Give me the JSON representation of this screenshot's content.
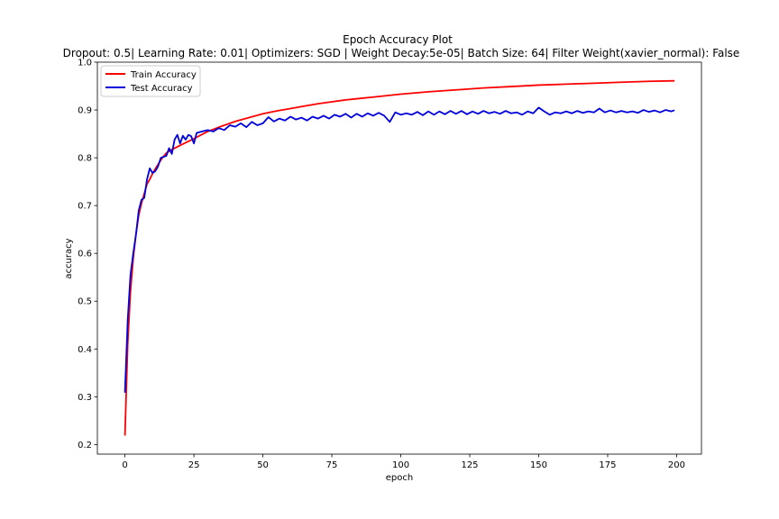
{
  "chart_data": {
    "type": "line",
    "title": "Epoch Accuracy Plot",
    "subtitle": "Dropout: 0.5| Learning Rate: 0.01| Optimizers: SGD | Weight Decay:5e-05| Batch Size: 64| Filter Weight(xavier_normal): False",
    "xlabel": "epoch",
    "ylabel": "accuracy",
    "xlim": [
      -10,
      209
    ],
    "ylim": [
      0.18,
      1.0
    ],
    "xticks": [
      0,
      25,
      50,
      75,
      100,
      125,
      150,
      175,
      200
    ],
    "yticks": [
      0.2,
      0.3,
      0.4,
      0.5,
      0.6,
      0.7,
      0.8,
      0.9,
      1.0
    ],
    "xtick_labels": [
      "0",
      "25",
      "50",
      "75",
      "100",
      "125",
      "150",
      "175",
      "200"
    ],
    "ytick_labels": [
      "0.2",
      "0.3",
      "0.4",
      "0.5",
      "0.6",
      "0.7",
      "0.8",
      "0.9",
      "1.0"
    ],
    "grid": false,
    "legend_position": "top-left",
    "series": [
      {
        "name": "Train Accuracy",
        "color": "#ff0000",
        "points": [
          [
            0,
            0.22
          ],
          [
            1,
            0.41
          ],
          [
            2,
            0.52
          ],
          [
            3,
            0.59
          ],
          [
            4,
            0.64
          ],
          [
            5,
            0.68
          ],
          [
            6,
            0.705
          ],
          [
            7,
            0.725
          ],
          [
            8,
            0.745
          ],
          [
            9,
            0.755
          ],
          [
            10,
            0.767
          ],
          [
            11,
            0.777
          ],
          [
            12,
            0.786
          ],
          [
            13,
            0.795
          ],
          [
            14,
            0.803
          ],
          [
            15,
            0.81
          ],
          [
            17,
            0.817
          ],
          [
            20,
            0.826
          ],
          [
            25,
            0.84
          ],
          [
            30,
            0.855
          ],
          [
            35,
            0.866
          ],
          [
            40,
            0.876
          ],
          [
            45,
            0.884
          ],
          [
            50,
            0.892
          ],
          [
            55,
            0.898
          ],
          [
            60,
            0.903
          ],
          [
            65,
            0.908
          ],
          [
            70,
            0.913
          ],
          [
            75,
            0.917
          ],
          [
            80,
            0.921
          ],
          [
            85,
            0.924
          ],
          [
            90,
            0.927
          ],
          [
            95,
            0.93
          ],
          [
            100,
            0.933
          ],
          [
            110,
            0.938
          ],
          [
            120,
            0.942
          ],
          [
            130,
            0.946
          ],
          [
            140,
            0.949
          ],
          [
            150,
            0.952
          ],
          [
            160,
            0.954
          ],
          [
            170,
            0.956
          ],
          [
            180,
            0.958
          ],
          [
            190,
            0.96
          ],
          [
            199,
            0.961
          ]
        ]
      },
      {
        "name": "Test Accuracy",
        "color": "#0000dd",
        "points": [
          [
            0,
            0.31
          ],
          [
            1,
            0.46
          ],
          [
            2,
            0.555
          ],
          [
            3,
            0.6
          ],
          [
            4,
            0.64
          ],
          [
            5,
            0.69
          ],
          [
            6,
            0.712
          ],
          [
            7,
            0.716
          ],
          [
            8,
            0.755
          ],
          [
            9,
            0.778
          ],
          [
            10,
            0.768
          ],
          [
            11,
            0.772
          ],
          [
            12,
            0.782
          ],
          [
            13,
            0.8
          ],
          [
            14,
            0.802
          ],
          [
            15,
            0.804
          ],
          [
            16,
            0.82
          ],
          [
            17,
            0.808
          ],
          [
            18,
            0.838
          ],
          [
            19,
            0.848
          ],
          [
            20,
            0.83
          ],
          [
            21,
            0.846
          ],
          [
            22,
            0.838
          ],
          [
            23,
            0.848
          ],
          [
            24,
            0.845
          ],
          [
            25,
            0.83
          ],
          [
            26,
            0.852
          ],
          [
            28,
            0.855
          ],
          [
            30,
            0.858
          ],
          [
            32,
            0.855
          ],
          [
            34,
            0.862
          ],
          [
            36,
            0.858
          ],
          [
            38,
            0.868
          ],
          [
            40,
            0.865
          ],
          [
            42,
            0.872
          ],
          [
            44,
            0.864
          ],
          [
            46,
            0.875
          ],
          [
            48,
            0.868
          ],
          [
            50,
            0.872
          ],
          [
            52,
            0.885
          ],
          [
            54,
            0.876
          ],
          [
            56,
            0.882
          ],
          [
            58,
            0.878
          ],
          [
            60,
            0.886
          ],
          [
            62,
            0.88
          ],
          [
            64,
            0.884
          ],
          [
            66,
            0.878
          ],
          [
            68,
            0.886
          ],
          [
            70,
            0.882
          ],
          [
            72,
            0.888
          ],
          [
            74,
            0.882
          ],
          [
            76,
            0.89
          ],
          [
            78,
            0.886
          ],
          [
            80,
            0.892
          ],
          [
            82,
            0.884
          ],
          [
            84,
            0.892
          ],
          [
            86,
            0.886
          ],
          [
            88,
            0.893
          ],
          [
            90,
            0.888
          ],
          [
            92,
            0.894
          ],
          [
            94,
            0.888
          ],
          [
            96,
            0.875
          ],
          [
            98,
            0.895
          ],
          [
            100,
            0.89
          ],
          [
            102,
            0.893
          ],
          [
            104,
            0.89
          ],
          [
            106,
            0.896
          ],
          [
            108,
            0.889
          ],
          [
            110,
            0.897
          ],
          [
            112,
            0.89
          ],
          [
            114,
            0.897
          ],
          [
            116,
            0.891
          ],
          [
            118,
            0.898
          ],
          [
            120,
            0.892
          ],
          [
            122,
            0.898
          ],
          [
            124,
            0.891
          ],
          [
            126,
            0.897
          ],
          [
            128,
            0.892
          ],
          [
            130,
            0.898
          ],
          [
            132,
            0.893
          ],
          [
            134,
            0.896
          ],
          [
            136,
            0.892
          ],
          [
            138,
            0.898
          ],
          [
            140,
            0.893
          ],
          [
            142,
            0.895
          ],
          [
            144,
            0.89
          ],
          [
            146,
            0.897
          ],
          [
            148,
            0.893
          ],
          [
            150,
            0.905
          ],
          [
            152,
            0.897
          ],
          [
            154,
            0.89
          ],
          [
            156,
            0.895
          ],
          [
            158,
            0.893
          ],
          [
            160,
            0.897
          ],
          [
            162,
            0.893
          ],
          [
            164,
            0.898
          ],
          [
            166,
            0.894
          ],
          [
            168,
            0.897
          ],
          [
            170,
            0.895
          ],
          [
            172,
            0.903
          ],
          [
            174,
            0.895
          ],
          [
            176,
            0.899
          ],
          [
            178,
            0.895
          ],
          [
            180,
            0.898
          ],
          [
            182,
            0.895
          ],
          [
            184,
            0.897
          ],
          [
            186,
            0.894
          ],
          [
            188,
            0.9
          ],
          [
            190,
            0.896
          ],
          [
            192,
            0.899
          ],
          [
            194,
            0.895
          ],
          [
            196,
            0.9
          ],
          [
            198,
            0.897
          ],
          [
            199,
            0.899
          ]
        ]
      }
    ]
  }
}
